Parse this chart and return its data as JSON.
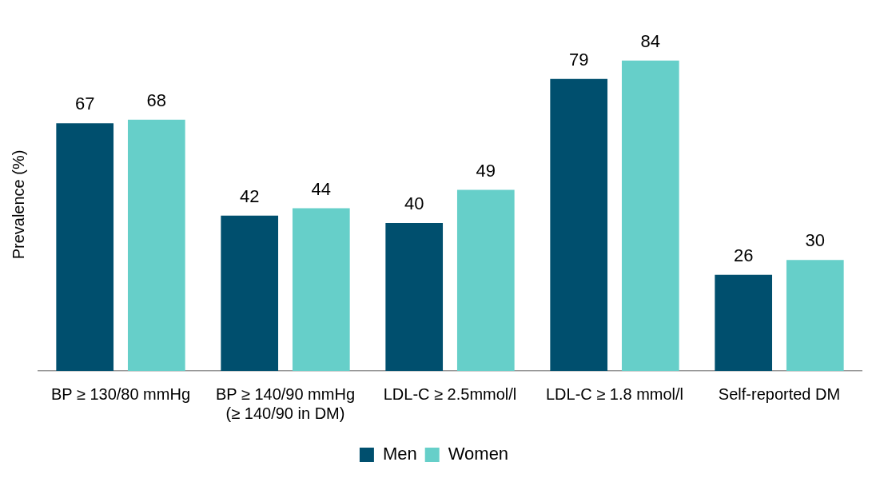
{
  "chart_data": {
    "type": "bar",
    "ylabel": "Prevalence (%)",
    "categories": [
      "BP ≥ 130/80 mmHg",
      "BP ≥ 140/90 mmHg\n(≥ 140/90 in DM)",
      "LDL-C ≥ 2.5mmol/l",
      "LDL-C ≥ 1.8 mmol/l",
      "Self-reported DM"
    ],
    "series": [
      {
        "name": "Men",
        "color": "#004f6e",
        "values": [
          67,
          42,
          40,
          79,
          26
        ]
      },
      {
        "name": "Women",
        "color": "#66cfc9",
        "values": [
          68,
          44,
          49,
          84,
          30
        ]
      }
    ],
    "data_labels": true,
    "grid": false,
    "legend": "bottom"
  }
}
